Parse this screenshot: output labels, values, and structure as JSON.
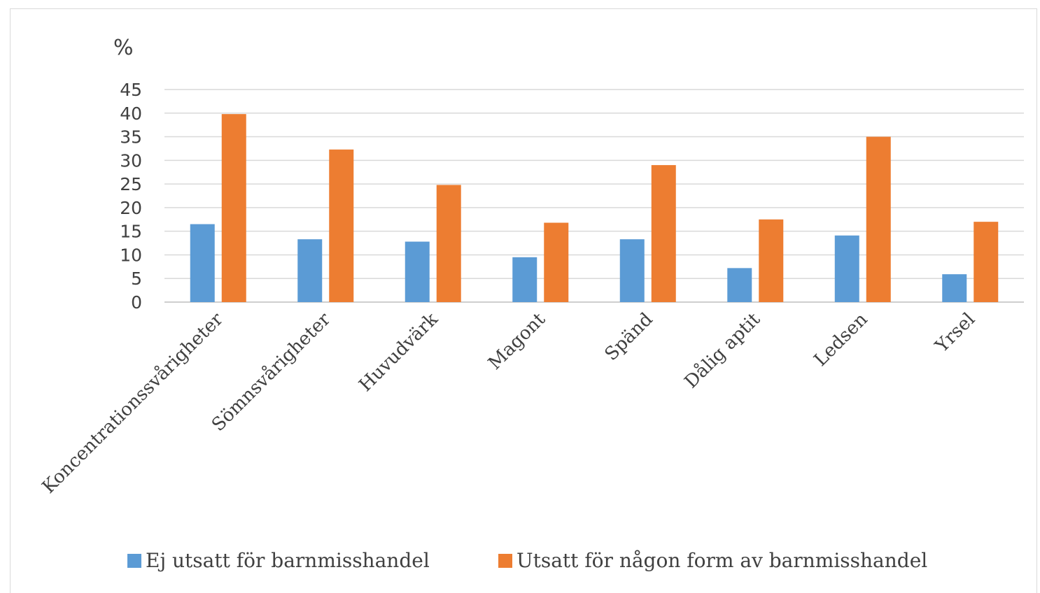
{
  "chart_data": {
    "type": "bar",
    "title": "",
    "xlabel": "",
    "ylabel": "%",
    "ylim": [
      0,
      45
    ],
    "yticks": [
      0,
      5,
      10,
      15,
      20,
      25,
      30,
      35,
      40,
      45
    ],
    "grid": true,
    "legend_position": "bottom",
    "categories": [
      "Koncentrationssvårigheter",
      "Sömnsvårigheter",
      "Huvudvärk",
      "Magont",
      "Spänd",
      "Dålig aptit",
      "Ledsen",
      "Yrsel"
    ],
    "series": [
      {
        "name": "Ej utsatt för barnmisshandel",
        "color": "#5b9bd5",
        "values": [
          16.5,
          13.3,
          12.8,
          9.5,
          13.3,
          7.2,
          14.1,
          5.9
        ]
      },
      {
        "name": "Utsatt för någon form av barnmisshandel",
        "color": "#ed7d31",
        "values": [
          39.8,
          32.3,
          24.8,
          16.8,
          29,
          17.5,
          35,
          17
        ]
      }
    ]
  }
}
